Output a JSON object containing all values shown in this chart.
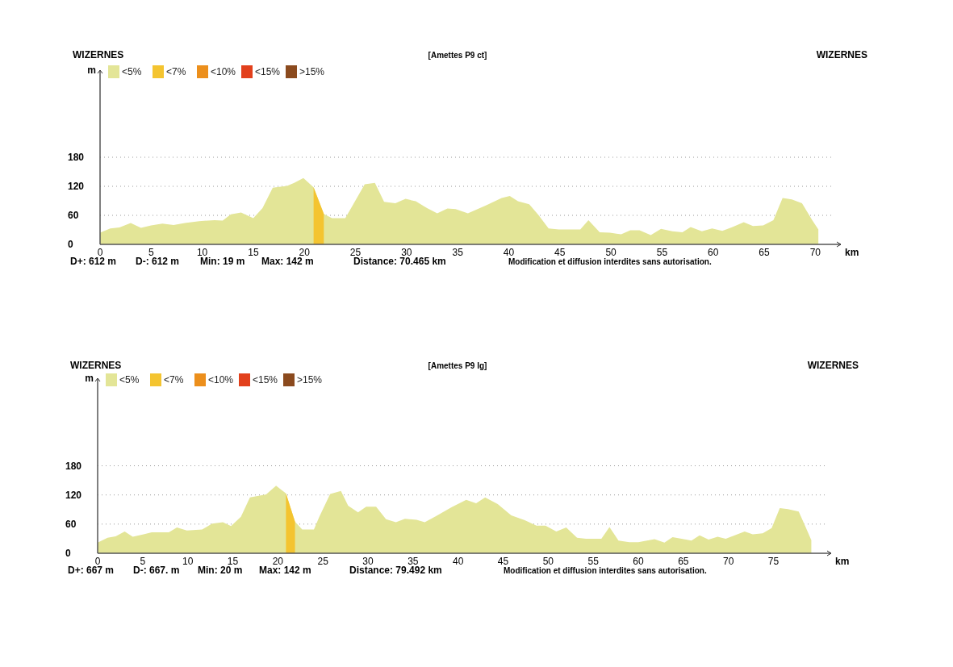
{
  "chart_data": [
    {
      "type": "area",
      "title": "[Amettes P9 ct]",
      "xlabel": "km",
      "ylabel": "m",
      "xlim": [
        0,
        72.5
      ],
      "ylim": [
        0,
        360
      ],
      "xticks": [
        0,
        5,
        10,
        15,
        20,
        25,
        30,
        35,
        40,
        45,
        50,
        55,
        60,
        65,
        70
      ],
      "yticks": [
        0,
        60,
        120,
        180
      ],
      "grid": "y",
      "legend": "top left",
      "annotations": [
        "WIZERNES",
        "WIZERNES",
        "D+: 612 m",
        "D-: 612 m",
        "Min: 19 m",
        "Max: 142 m",
        "Distance: 70.465 km",
        "Modification et diffusion interdites sans autorisation."
      ],
      "series": [
        {
          "name": "<5%",
          "color": "#e3e597",
          "x": [
            0,
            1.0,
            1.9,
            3.0,
            4.0,
            5.0,
            6.1,
            7.2,
            8.3,
            9.7,
            11.2,
            12.0,
            12.8,
            13.8,
            15.0,
            15.9,
            16.9,
            18.3,
            19.0,
            19.9,
            20.9,
            21.9,
            22.7,
            24.0,
            25.9,
            26.9,
            27.8,
            28.9,
            29.9,
            30.9,
            32.0,
            33.0,
            34.0,
            34.8,
            36.0,
            37.8,
            39.3,
            40.1,
            40.9,
            42.0,
            42.9,
            43.9,
            44.9,
            47.0,
            47.8,
            48.9,
            49.9,
            51.0,
            51.9,
            52.8,
            53.9,
            54.9,
            56.0,
            57.0,
            57.8,
            58.9,
            59.9,
            60.9,
            61.9,
            63.0,
            63.9,
            64.9,
            65.9,
            66.8,
            67.7,
            68.7,
            69.7,
            70.3
          ],
          "values": [
            24,
            33,
            35,
            44,
            34,
            39,
            43,
            40,
            44,
            48,
            50,
            49,
            62,
            66,
            54,
            75,
            117,
            121,
            127,
            137,
            118,
            63,
            54,
            54,
            124,
            127,
            88,
            85,
            94,
            89,
            75,
            64,
            74,
            73,
            64,
            81,
            96,
            100,
            89,
            83,
            61,
            33,
            31,
            31,
            50,
            25,
            24,
            21,
            29,
            29,
            19,
            32,
            27,
            25,
            36,
            27,
            33,
            28,
            36,
            46,
            38,
            39,
            50,
            96,
            93,
            85,
            50,
            31
          ]
        },
        {
          "name": "<7%",
          "color": "#f4c430",
          "x": [
            20.9,
            21.9
          ],
          "values": [
            118,
            63
          ]
        },
        {
          "name": "<10%",
          "color": "#ec8f1c"
        },
        {
          "name": "<15%",
          "color": "#e2401c"
        },
        {
          "name": ">15%",
          "color": "#8b4a1e"
        }
      ]
    },
    {
      "type": "area",
      "title": "[Amettes P9 lg]",
      "xlabel": "km",
      "ylabel": "m",
      "xlim": [
        0,
        81.4
      ],
      "ylim": [
        0,
        360
      ],
      "xticks": [
        0,
        5,
        10,
        15,
        20,
        25,
        30,
        35,
        40,
        45,
        50,
        55,
        60,
        65,
        70,
        75
      ],
      "yticks": [
        0,
        60,
        120,
        180
      ],
      "grid": "y",
      "legend": "top left",
      "annotations": [
        "WIZERNES",
        "WIZERNES",
        "D+: 667 m",
        "D-: 667. m",
        "Min: 20 m",
        "Max: 142 m",
        "Distance: 79.492 km",
        "Modification et diffusion interdites sans autorisation."
      ],
      "series": [
        {
          "name": "<5%",
          "color": "#e3e597",
          "x": [
            0,
            1.1,
            2.0,
            3.0,
            3.9,
            5.1,
            6.0,
            7.9,
            8.8,
            9.9,
            11.6,
            12.7,
            13.9,
            14.8,
            15.9,
            16.9,
            18.7,
            19.8,
            20.9,
            21.9,
            22.7,
            24.0,
            24.6,
            25.8,
            27.0,
            27.8,
            28.9,
            29.8,
            30.9,
            32.0,
            33.1,
            34.1,
            35.4,
            36.3,
            37.5,
            39.3,
            40.9,
            42.0,
            43.0,
            44.4,
            45.9,
            47.4,
            48.7,
            49.7,
            50.9,
            52.0,
            53.2,
            54.2,
            55.9,
            56.8,
            57.8,
            59.0,
            60.0,
            61.8,
            62.9,
            63.8,
            64.8,
            65.9,
            66.8,
            67.8,
            68.8,
            69.7,
            71.8,
            72.7,
            73.8,
            74.8,
            75.7,
            76.6,
            77.8,
            78.5,
            79.2
          ],
          "values": [
            22,
            32,
            35,
            45,
            34,
            39,
            43,
            43,
            53,
            47,
            49,
            61,
            64,
            56,
            75,
            115,
            121,
            139,
            123,
            65,
            49,
            49,
            75,
            122,
            128,
            98,
            84,
            96,
            96,
            70,
            64,
            71,
            69,
            64,
            76,
            95,
            110,
            103,
            115,
            101,
            78,
            68,
            57,
            57,
            45,
            53,
            32,
            30,
            30,
            54,
            26,
            23,
            23,
            29,
            22,
            33,
            30,
            26,
            37,
            28,
            34,
            30,
            45,
            39,
            41,
            52,
            93,
            91,
            86,
            57,
            27
          ]
        },
        {
          "name": "<7%",
          "color": "#f4c430",
          "x": [
            20.9,
            21.9
          ],
          "values": [
            123,
            65
          ]
        },
        {
          "name": "<10%",
          "color": "#ec8f1c"
        },
        {
          "name": "<15%",
          "color": "#e2401c"
        },
        {
          "name": ">15%",
          "color": "#8b4a1e"
        }
      ]
    }
  ]
}
